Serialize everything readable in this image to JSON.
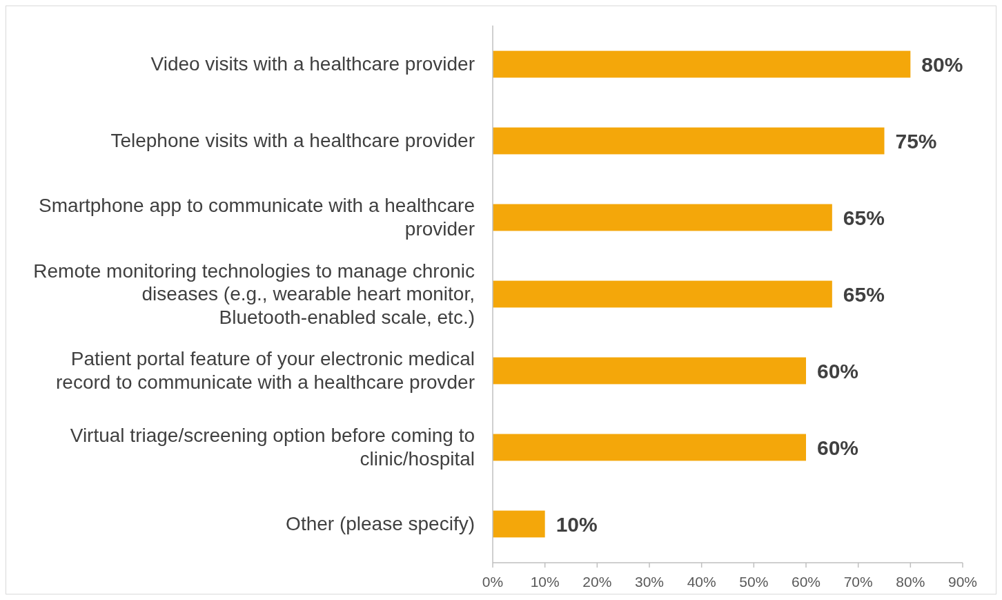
{
  "chart_data": {
    "type": "bar",
    "orientation": "horizontal",
    "categories": [
      "Video visits with a healthcare provider",
      "Telephone visits with a healthcare provider",
      "Smartphone app to communicate with a healthcare provider",
      "Remote monitoring technologies to manage chronic diseases (e.g., wearable heart monitor, Bluetooth-enabled scale, etc.)",
      "Patient portal feature of your electronic medical record to communicate with a healthcare provder",
      "Virtual triage/screening option before coming to clinic/hospital",
      "Other (please specify)"
    ],
    "values": [
      80,
      75,
      65,
      65,
      60,
      60,
      10
    ],
    "color": "#f4a70a",
    "xlim": [
      0,
      90
    ],
    "xticks": [
      {
        "value": 0,
        "label": "0%"
      },
      {
        "value": 10,
        "label": "10%"
      },
      {
        "value": 20,
        "label": "20%"
      },
      {
        "value": 30,
        "label": "30%"
      },
      {
        "value": 40,
        "label": "40%"
      },
      {
        "value": 50,
        "label": "50%"
      },
      {
        "value": 60,
        "label": "60%"
      },
      {
        "value": 70,
        "label": "70%"
      },
      {
        "value": 80,
        "label": "80%"
      },
      {
        "value": 90,
        "label": "90%"
      }
    ],
    "value_labels": [
      "80%",
      "75%",
      "65%",
      "65%",
      "60%",
      "60%",
      "10%"
    ],
    "grid": false
  }
}
